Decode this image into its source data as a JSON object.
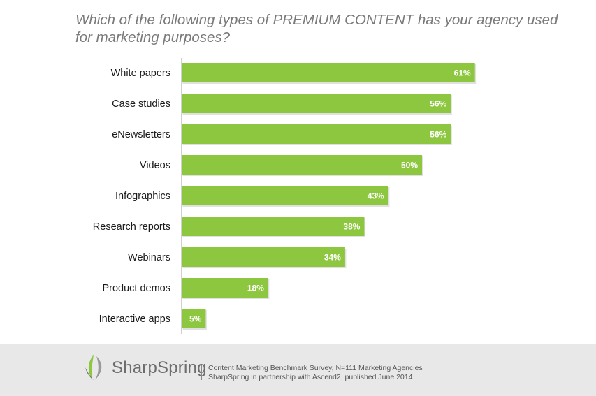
{
  "chart_data": {
    "type": "bar",
    "orientation": "horizontal",
    "title": "Which of the following types of PREMIUM CONTENT has your agency used for marketing purposes?",
    "categories": [
      "White papers",
      "Case studies",
      "eNewsletters",
      "Videos",
      "Infographics",
      "Research reports",
      "Webinars",
      "Product demos",
      "Interactive apps"
    ],
    "values": [
      61,
      56,
      56,
      50,
      43,
      38,
      34,
      18,
      5
    ],
    "value_labels": [
      "61%",
      "56%",
      "56%",
      "50%",
      "43%",
      "38%",
      "34%",
      "18%",
      "5%"
    ],
    "xlim": [
      0,
      100
    ],
    "grid": false,
    "bar_color": "#8dc63f"
  },
  "footer": {
    "brand": "SharpSpring",
    "source_line1": "Content Marketing Benchmark Survey, N=111 Marketing Agencies",
    "source_line2": "SharpSpring in partnership with Ascend2, published June 2014"
  }
}
